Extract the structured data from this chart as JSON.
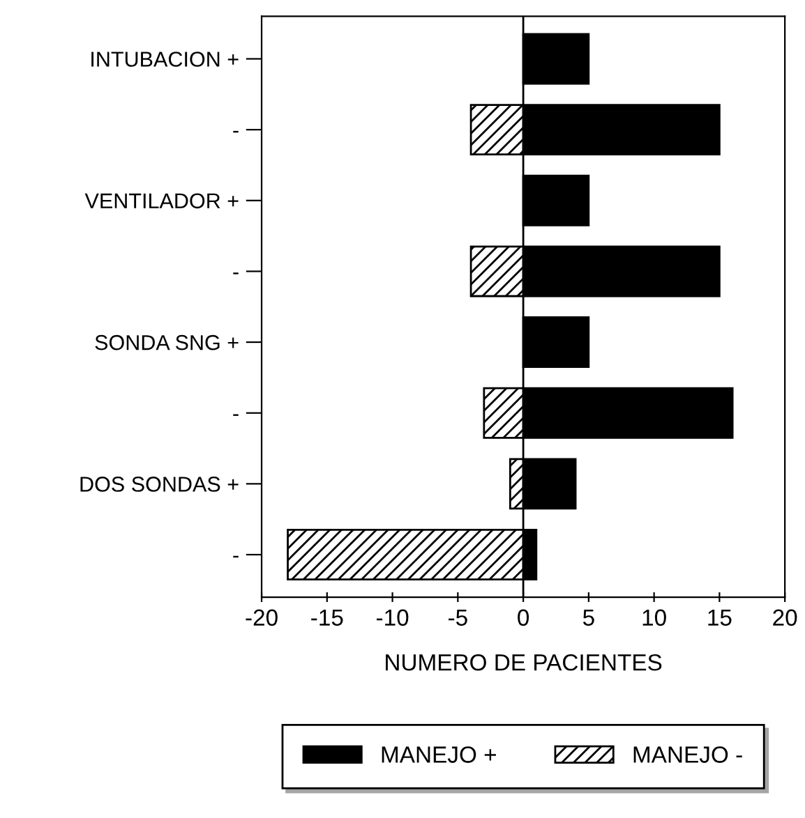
{
  "chart_data": {
    "type": "bar",
    "orientation": "horizontal",
    "stacked": true,
    "ref_lines": [
      {
        "axis": "x",
        "value": 0
      }
    ],
    "categories": [
      "INTUBACION +",
      "-",
      "VENTILADOR +",
      "-",
      "SONDA SNG +",
      "-",
      "DOS SONDAS +",
      "-"
    ],
    "series": [
      {
        "name": "MANEJO +",
        "color": "#000000",
        "values": [
          5,
          15,
          5,
          15,
          5,
          16,
          4,
          1
        ]
      },
      {
        "name": "MANEJO -",
        "color": "#000000",
        "values": [
          null,
          -4,
          null,
          -4,
          null,
          -3,
          -1,
          -18
        ]
      }
    ],
    "xlabel": "NUMERO DE PACIENTES",
    "xlim": [
      -20,
      20
    ],
    "xticks": [
      -20,
      -15,
      -10,
      -5,
      0,
      5,
      10,
      15,
      20
    ],
    "legend": "bottom",
    "grid": false
  }
}
